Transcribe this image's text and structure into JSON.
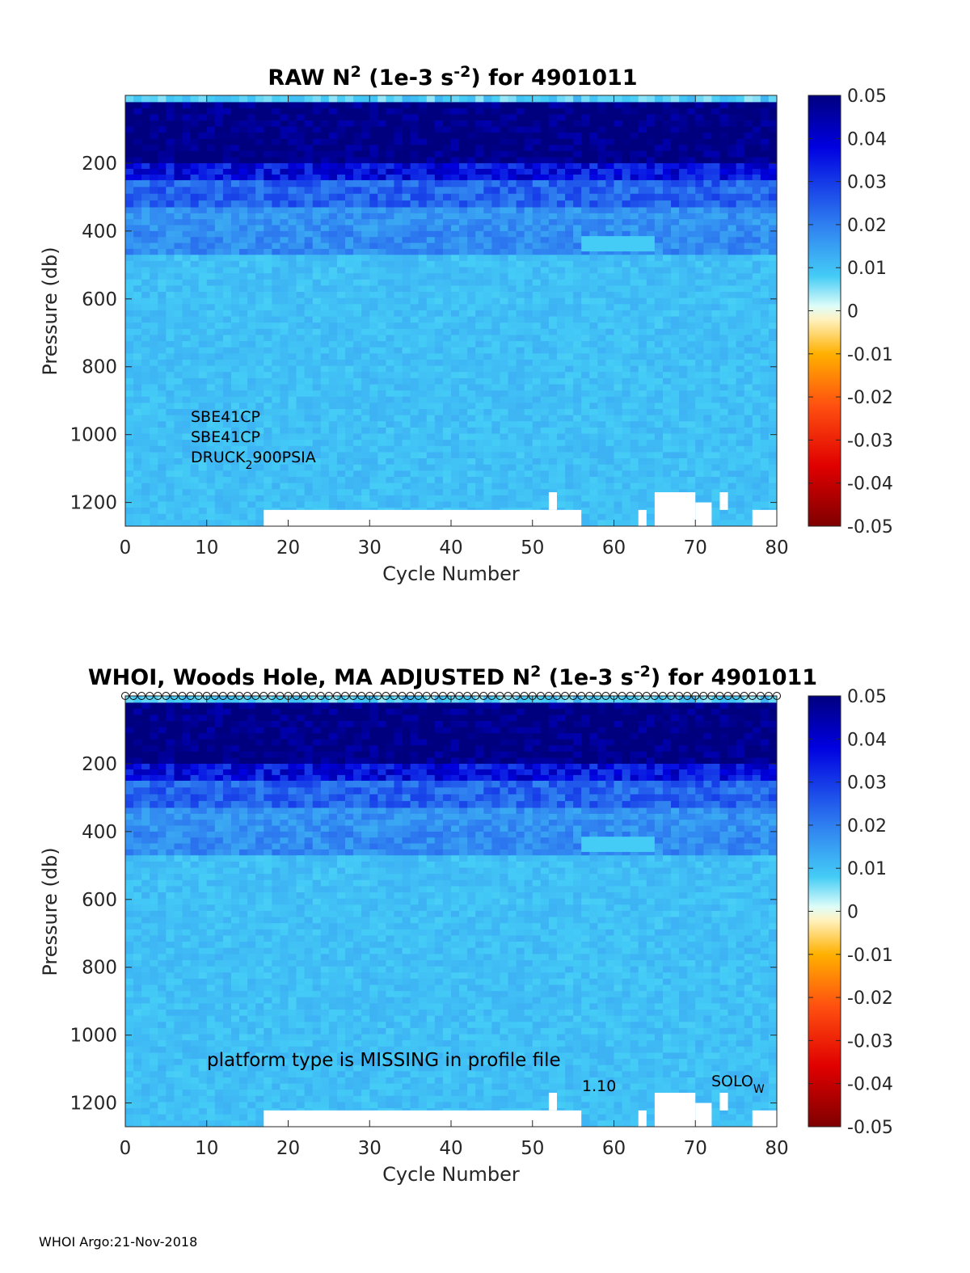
{
  "footer": "WHOI Argo:21-Nov-2018",
  "colorbar": {
    "ticks": [
      "0.05",
      "0.04",
      "0.03",
      "0.02",
      "0.01",
      "0",
      "-0.01",
      "-0.02",
      "-0.03",
      "-0.04",
      "-0.05"
    ],
    "range": [
      -0.05,
      0.05
    ]
  },
  "chart_data": [
    {
      "type": "heatmap",
      "title_main": "RAW N",
      "title_sup1": "2",
      "title_mid": " (1e-3 s",
      "title_sup2": "-2",
      "title_end": ") for 4901011",
      "xlabel": "Cycle Number",
      "ylabel": "Pressure (db)",
      "xlim": [
        0,
        80
      ],
      "ylim": [
        1270,
        0
      ],
      "xticks": [
        "0",
        "10",
        "20",
        "30",
        "40",
        "50",
        "60",
        "70",
        "80"
      ],
      "yticks": [
        "200",
        "400",
        "600",
        "800",
        "1000",
        "1200"
      ],
      "annotations": {
        "sensor1": "SBE41CP",
        "sensor2": "SBE41CP",
        "sensor3_main": "DRUCK",
        "sensor3_sub": "2",
        "sensor3_end": "900PSIA"
      }
    },
    {
      "type": "heatmap",
      "title_main": "WHOI, Woods Hole, MA  ADJUSTED N",
      "title_sup1": "2",
      "title_mid": " (1e-3 s",
      "title_sup2": "-2",
      "title_end": ") for 4901011",
      "xlabel": "Cycle Number",
      "ylabel": "Pressure (db)",
      "xlim": [
        0,
        80
      ],
      "ylim": [
        1270,
        0
      ],
      "xticks": [
        "0",
        "10",
        "20",
        "30",
        "40",
        "50",
        "60",
        "70",
        "80"
      ],
      "yticks": [
        "200",
        "400",
        "600",
        "800",
        "1000",
        "1200"
      ],
      "annotations": {
        "platform": "platform type is MISSING in profile file",
        "version": "1.10",
        "solo_main": "SOLO",
        "solo_sub": "W"
      }
    }
  ],
  "shared_field": {
    "cycles": 80,
    "depth_bands": [
      {
        "p_top": 0,
        "p_bot": 20,
        "value": 0.008
      },
      {
        "p_top": 20,
        "p_bot": 200,
        "value": 0.05
      },
      {
        "p_top": 200,
        "p_bot": 250,
        "value": 0.036
      },
      {
        "p_top": 250,
        "p_bot": 330,
        "value": 0.024
      },
      {
        "p_top": 330,
        "p_bot": 400,
        "value": 0.017
      },
      {
        "p_top": 400,
        "p_bot": 470,
        "value": 0.018
      },
      {
        "p_top": 470,
        "p_bot": 1270,
        "value": 0.01
      }
    ],
    "missing_regions": [
      {
        "c0": 17,
        "c1": 56,
        "p_top": 1222,
        "p_bot": 1270
      },
      {
        "c0": 52,
        "c1": 53,
        "p_top": 1170,
        "p_bot": 1222
      },
      {
        "c0": 63,
        "c1": 64,
        "p_top": 1222,
        "p_bot": 1270
      },
      {
        "c0": 65,
        "c1": 70,
        "p_top": 1170,
        "p_bot": 1270
      },
      {
        "c0": 70,
        "c1": 72,
        "p_top": 1200,
        "p_bot": 1270
      },
      {
        "c0": 73,
        "c1": 74,
        "p_top": 1170,
        "p_bot": 1222
      },
      {
        "c0": 77,
        "c1": 80,
        "p_top": 1222,
        "p_bot": 1270
      },
      {
        "c0": 56,
        "c1": 65,
        "p_top": 415,
        "p_bot": 460,
        "value": 0.008
      }
    ]
  }
}
